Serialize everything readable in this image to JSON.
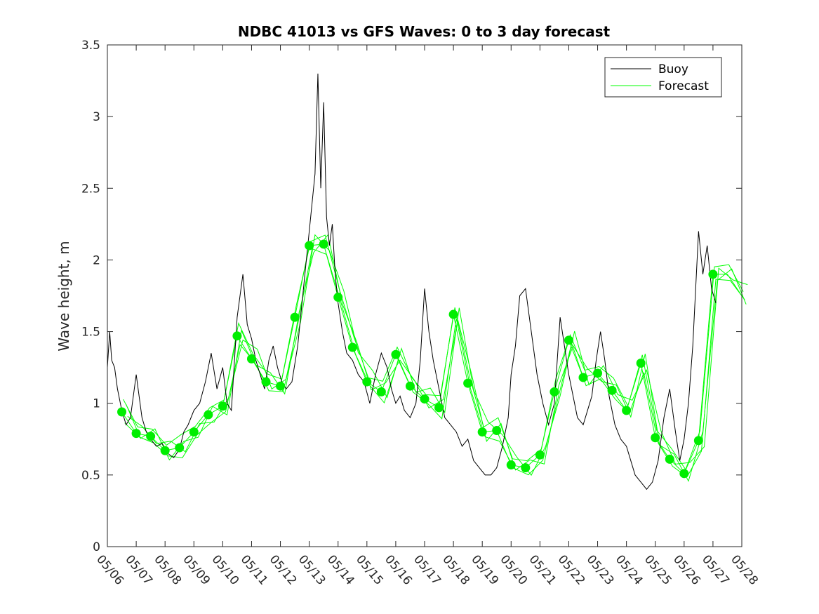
{
  "chart_data": {
    "type": "line",
    "title": "NDBC 41013 vs GFS Waves: 0 to 3 day forecast",
    "xlabel": "",
    "ylabel": "Wave height, m",
    "ylim": [
      0,
      3.5
    ],
    "yticks": [
      "0",
      "0.5",
      "1",
      "1.5",
      "2",
      "2.5",
      "3",
      "3.5"
    ],
    "xlim": [
      0,
      22
    ],
    "xticks": [
      "05/06",
      "05/07",
      "05/08",
      "05/09",
      "05/10",
      "05/11",
      "05/12",
      "05/13",
      "05/14",
      "05/15",
      "05/16",
      "05/17",
      "05/18",
      "05/19",
      "05/20",
      "05/21",
      "05/22",
      "05/23",
      "05/24",
      "05/25",
      "05/26",
      "05/27",
      "05/28"
    ],
    "grid": false,
    "legend": {
      "position": "top-right",
      "entries": [
        {
          "label": "Buoy",
          "color": "#000000"
        },
        {
          "label": "Forecast",
          "color": "#00ff00"
        }
      ]
    },
    "series": [
      {
        "name": "Buoy",
        "color": "#000000",
        "x": [
          0,
          0.08,
          0.15,
          0.25,
          0.35,
          0.5,
          0.65,
          0.8,
          1.0,
          1.2,
          1.35,
          1.5,
          1.7,
          1.9,
          2.1,
          2.3,
          2.5,
          2.65,
          2.8,
          3.0,
          3.2,
          3.4,
          3.6,
          3.8,
          4.0,
          4.15,
          4.3,
          4.5,
          4.7,
          4.85,
          5.0,
          5.15,
          5.3,
          5.45,
          5.6,
          5.75,
          5.9,
          6.05,
          6.2,
          6.4,
          6.6,
          6.8,
          7.0,
          7.1,
          7.2,
          7.3,
          7.4,
          7.5,
          7.6,
          7.7,
          7.8,
          7.9,
          8.0,
          8.15,
          8.3,
          8.5,
          8.7,
          8.9,
          9.1,
          9.3,
          9.5,
          9.7,
          9.85,
          10.0,
          10.15,
          10.3,
          10.5,
          10.7,
          10.85,
          11.0,
          11.15,
          11.3,
          11.5,
          11.7,
          11.9,
          12.1,
          12.3,
          12.5,
          12.7,
          12.9,
          13.1,
          13.3,
          13.5,
          13.7,
          13.9,
          14.0,
          14.15,
          14.3,
          14.5,
          14.7,
          14.9,
          15.1,
          15.3,
          15.5,
          15.7,
          15.85,
          16.0,
          16.15,
          16.3,
          16.5,
          16.65,
          16.8,
          16.95,
          17.1,
          17.25,
          17.4,
          17.6,
          17.8,
          18.0,
          18.15,
          18.3,
          18.5,
          18.7,
          18.9,
          19.1,
          19.3,
          19.5,
          19.7,
          19.85,
          20.0,
          20.15,
          20.3,
          20.5,
          20.65,
          20.8,
          20.95,
          21.1
        ],
        "y": [
          1.25,
          1.5,
          1.3,
          1.25,
          1.1,
          0.95,
          0.85,
          0.9,
          1.2,
          0.9,
          0.8,
          0.75,
          0.7,
          0.72,
          0.65,
          0.62,
          0.68,
          0.8,
          0.85,
          0.95,
          1.0,
          1.15,
          1.35,
          1.1,
          1.25,
          1.0,
          0.95,
          1.6,
          1.9,
          1.55,
          1.45,
          1.3,
          1.2,
          1.1,
          1.3,
          1.4,
          1.25,
          1.15,
          1.1,
          1.15,
          1.4,
          1.8,
          2.2,
          2.4,
          2.6,
          3.3,
          2.5,
          3.1,
          2.3,
          2.1,
          2.25,
          1.9,
          1.7,
          1.5,
          1.35,
          1.3,
          1.2,
          1.15,
          1.0,
          1.2,
          1.35,
          1.25,
          1.1,
          1.0,
          1.05,
          0.95,
          0.9,
          1.0,
          1.3,
          1.8,
          1.5,
          1.3,
          1.1,
          0.9,
          0.85,
          0.8,
          0.7,
          0.75,
          0.6,
          0.55,
          0.5,
          0.5,
          0.55,
          0.7,
          0.9,
          1.2,
          1.4,
          1.75,
          1.8,
          1.5,
          1.2,
          1.0,
          0.85,
          1.0,
          1.6,
          1.4,
          1.2,
          1.05,
          0.9,
          0.85,
          0.95,
          1.05,
          1.3,
          1.5,
          1.3,
          1.05,
          0.85,
          0.75,
          0.7,
          0.6,
          0.5,
          0.45,
          0.4,
          0.45,
          0.6,
          0.9,
          1.1,
          0.8,
          0.6,
          0.75,
          1.0,
          1.4,
          2.2,
          1.9,
          2.1,
          1.8,
          1.7
        ]
      },
      {
        "name": "Forecast",
        "color": "#00ff00",
        "x": [
          0.5,
          1.0,
          1.5,
          2.0,
          2.5,
          3.0,
          3.5,
          4.0,
          4.5,
          5.0,
          5.5,
          6.0,
          6.5,
          7.0,
          7.5,
          8.0,
          8.5,
          9.0,
          9.5,
          10.0,
          10.5,
          11.0,
          11.5,
          12.0,
          12.5,
          13.0,
          13.5,
          14.0,
          14.5,
          15.0,
          15.5,
          16.0,
          16.5,
          17.0,
          17.5,
          18.0,
          18.5,
          19.0,
          19.5,
          20.0,
          20.5,
          21.0,
          21.5,
          22.0
        ],
        "y": [
          0.94,
          0.79,
          0.77,
          0.67,
          0.69,
          0.8,
          0.92,
          0.98,
          1.47,
          1.31,
          1.15,
          1.12,
          1.6,
          2.1,
          2.11,
          1.74,
          1.39,
          1.15,
          1.08,
          1.34,
          1.12,
          1.03,
          0.97,
          1.62,
          1.14,
          0.8,
          0.81,
          0.57,
          0.55,
          0.64,
          1.08,
          1.44,
          1.18,
          1.21,
          1.09,
          0.95,
          1.28,
          0.76,
          0.61,
          0.51,
          0.74,
          1.9,
          1.9,
          1.75
        ]
      }
    ],
    "forecast_markers": {
      "x": [
        0.5,
        1.0,
        1.5,
        2.0,
        2.5,
        3.0,
        3.5,
        4.0,
        4.5,
        5.0,
        5.5,
        6.0,
        6.5,
        7.0,
        7.5,
        8.0,
        8.5,
        9.0,
        9.5,
        10.0,
        10.5,
        11.0,
        11.5,
        12.0,
        12.5,
        13.0,
        13.5,
        14.0,
        14.5,
        15.0,
        15.5,
        16.0,
        16.5,
        17.0,
        17.5,
        18.0,
        18.5,
        19.0,
        19.5,
        20.0,
        20.5,
        21.0
      ],
      "y": [
        0.94,
        0.79,
        0.77,
        0.67,
        0.69,
        0.8,
        0.92,
        0.98,
        1.47,
        1.31,
        1.15,
        1.12,
        1.6,
        2.1,
        2.11,
        1.74,
        1.39,
        1.15,
        1.08,
        1.34,
        1.12,
        1.03,
        0.97,
        1.62,
        1.14,
        0.8,
        0.81,
        0.57,
        0.55,
        0.64,
        1.08,
        1.44,
        1.18,
        1.21,
        1.09,
        0.95,
        1.28,
        0.76,
        0.61,
        0.51,
        0.74,
        1.9
      ],
      "color": "#00ee00"
    }
  }
}
